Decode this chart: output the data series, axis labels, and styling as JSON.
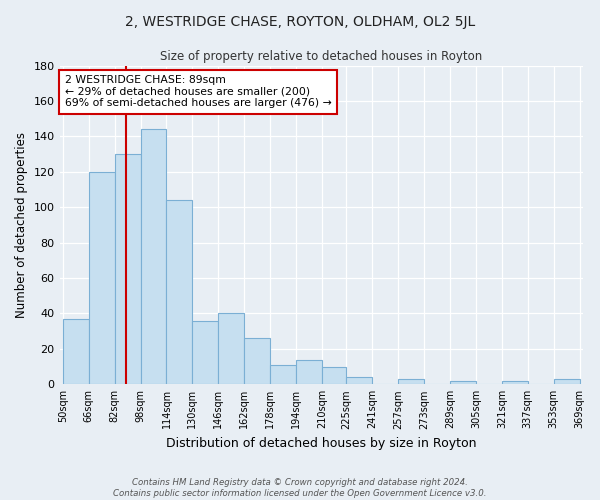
{
  "title": "2, WESTRIDGE CHASE, ROYTON, OLDHAM, OL2 5JL",
  "subtitle": "Size of property relative to detached houses in Royton",
  "xlabel": "Distribution of detached houses by size in Royton",
  "ylabel": "Number of detached properties",
  "bar_values": [
    37,
    120,
    130,
    144,
    104,
    36,
    40,
    26,
    11,
    14,
    10,
    4,
    0,
    3,
    0,
    2,
    0,
    2,
    0,
    3
  ],
  "bin_edges": [
    50,
    66,
    82,
    98,
    114,
    130,
    146,
    162,
    178,
    194,
    210,
    225,
    241,
    257,
    273,
    289,
    305,
    321,
    337,
    353,
    369
  ],
  "tick_labels": [
    "50sqm",
    "66sqm",
    "82sqm",
    "98sqm",
    "114sqm",
    "130sqm",
    "146sqm",
    "162sqm",
    "178sqm",
    "194sqm",
    "210sqm",
    "225sqm",
    "241sqm",
    "257sqm",
    "273sqm",
    "289sqm",
    "305sqm",
    "321sqm",
    "337sqm",
    "353sqm",
    "369sqm"
  ],
  "bar_color": "#c6dff0",
  "bar_edge_color": "#7bafd4",
  "vline_value": 89,
  "vline_color": "#cc0000",
  "ylim": [
    0,
    180
  ],
  "yticks": [
    0,
    20,
    40,
    60,
    80,
    100,
    120,
    140,
    160,
    180
  ],
  "annotation_title": "2 WESTRIDGE CHASE: 89sqm",
  "annotation_line1": "← 29% of detached houses are smaller (200)",
  "annotation_line2": "69% of semi-detached houses are larger (476) →",
  "annotation_box_color": "#ffffff",
  "annotation_box_edge": "#cc0000",
  "footer1": "Contains HM Land Registry data © Crown copyright and database right 2024.",
  "footer2": "Contains public sector information licensed under the Open Government Licence v3.0.",
  "background_color": "#e8eef4"
}
